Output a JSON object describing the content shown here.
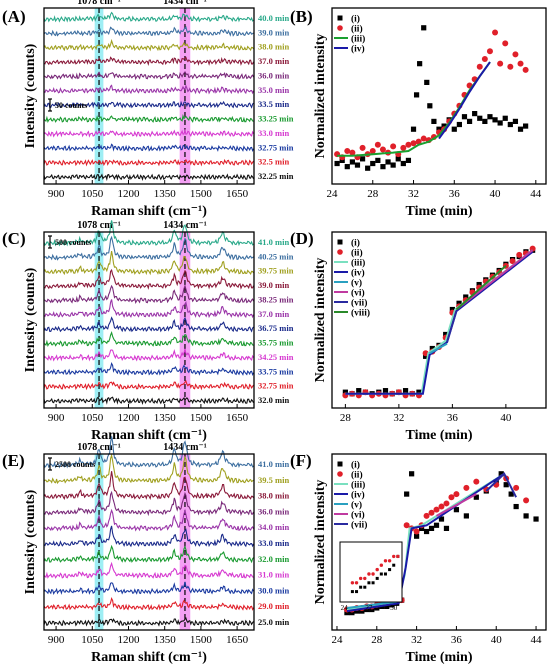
{
  "panels": {
    "A": "(A)",
    "B": "(B)",
    "C": "(C)",
    "D": "(D)",
    "E": "(E)",
    "F": "(F)"
  },
  "chart_data": [
    {
      "id": "A",
      "type": "line",
      "xlabel": "Raman shift (cm⁻¹)",
      "ylabel": "Intensity (counts)",
      "xticks": [
        "900",
        "1050",
        "1200",
        "1350",
        "1500",
        "1650"
      ],
      "xlim": [
        850,
        1720
      ],
      "bands": [
        "1078 cm⁻¹",
        "1434 cm⁻¹"
      ],
      "scalebar": "50 counts",
      "series": [
        {
          "name": "40.0 min",
          "color": "#2aa98a"
        },
        {
          "name": "39.0 min",
          "color": "#3d6fa0"
        },
        {
          "name": "38.0 min",
          "color": "#a0a020"
        },
        {
          "name": "37.0 min",
          "color": "#8a1a3a"
        },
        {
          "name": "36.0 min",
          "color": "#7a2a7a"
        },
        {
          "name": "35.0 min",
          "color": "#9a35a8"
        },
        {
          "name": "33.5 min",
          "color": "#1a2a8a"
        },
        {
          "name": "33.25 min",
          "color": "#1a9a30"
        },
        {
          "name": "33.0 min",
          "color": "#d63ad0"
        },
        {
          "name": "32.75 min",
          "color": "#1a3aa0"
        },
        {
          "name": "32.5 min",
          "color": "#e0202a"
        },
        {
          "name": "32.25 min",
          "color": "#111111"
        }
      ]
    },
    {
      "id": "B",
      "type": "scatter",
      "xlabel": "Time (min)",
      "ylabel": "Normalized intensity",
      "xticks": [
        "24",
        "28",
        "32",
        "36",
        "40",
        "44"
      ],
      "xlim": [
        24,
        45
      ],
      "legend": [
        "(i)",
        "(ii)",
        "(iii)",
        "(iv)"
      ],
      "series": [
        {
          "name": "(i)",
          "color": "#000000",
          "x": [
            24.5,
            25,
            25.5,
            26,
            26.5,
            27,
            27.5,
            28,
            28.5,
            29,
            29.5,
            30,
            30.5,
            31,
            31.5,
            32,
            32.3,
            32.6,
            33,
            33.3,
            33.6,
            34,
            34.5,
            35,
            35.5,
            36,
            36.5,
            37,
            37.5,
            38,
            38.5,
            39,
            39.5,
            40,
            40.5,
            41,
            41.5,
            42,
            42.5,
            43
          ],
          "y": [
            0.08,
            0.1,
            0.06,
            0.09,
            0.07,
            0.11,
            0.05,
            0.08,
            0.1,
            0.06,
            0.09,
            0.07,
            0.11,
            0.08,
            0.1,
            0.3,
            0.52,
            0.72,
            0.95,
            0.6,
            0.45,
            0.35,
            0.3,
            0.32,
            0.36,
            0.3,
            0.33,
            0.38,
            0.35,
            0.4,
            0.37,
            0.35,
            0.38,
            0.36,
            0.34,
            0.37,
            0.33,
            0.35,
            0.3,
            0.32
          ]
        },
        {
          "name": "(ii)",
          "color": "#e0202a",
          "x": [
            24.5,
            25,
            25.5,
            26,
            26.5,
            27,
            27.5,
            28,
            28.5,
            29,
            29.5,
            30,
            30.5,
            31,
            31.5,
            32,
            32.5,
            33,
            33.5,
            34,
            34.5,
            35,
            35.5,
            36,
            36.5,
            37,
            37.5,
            38,
            38.5,
            39,
            39.5,
            40,
            40.5,
            41,
            41.5,
            42,
            42.5,
            43
          ],
          "y": [
            0.14,
            0.12,
            0.16,
            0.15,
            0.12,
            0.18,
            0.14,
            0.16,
            0.2,
            0.17,
            0.15,
            0.19,
            0.14,
            0.18,
            0.2,
            0.21,
            0.22,
            0.24,
            0.23,
            0.25,
            0.28,
            0.3,
            0.35,
            0.4,
            0.45,
            0.52,
            0.58,
            0.62,
            0.7,
            0.75,
            0.8,
            0.92,
            0.72,
            0.85,
            0.7,
            0.78,
            0.72,
            0.68
          ]
        },
        {
          "name": "(iii)",
          "color": "#1aa030",
          "x": [
            24.5,
            26,
            28,
            30,
            31.5,
            32.5,
            33.5,
            34.5,
            35.5,
            36.5,
            37.5,
            38.5,
            39.5
          ],
          "y": [
            0.13,
            0.13,
            0.14,
            0.15,
            0.16,
            0.2,
            0.22,
            0.26,
            0.34,
            0.44,
            0.55,
            0.64,
            0.73
          ]
        },
        {
          "name": "(iv)",
          "color": "#1a1aa8",
          "x": [
            34.5,
            35.5,
            36.5,
            37.5,
            38.5,
            39.5
          ],
          "y": [
            0.24,
            0.33,
            0.43,
            0.54,
            0.64,
            0.73
          ]
        }
      ]
    },
    {
      "id": "C",
      "type": "line",
      "xlabel": "Raman shift (cm⁻¹)",
      "ylabel": "Intensity (counts)",
      "xticks": [
        "900",
        "1050",
        "1200",
        "1350",
        "1500",
        "1650"
      ],
      "xlim": [
        850,
        1720
      ],
      "bands": [
        "1078 cm⁻¹",
        "1434 cm⁻¹"
      ],
      "scalebar": "500 counts",
      "series": [
        {
          "name": "41.0 min",
          "color": "#2aa98a"
        },
        {
          "name": "40.25 min",
          "color": "#3d6fa0"
        },
        {
          "name": "39.75 min",
          "color": "#a0a020"
        },
        {
          "name": "39.0 min",
          "color": "#8a1a3a"
        },
        {
          "name": "38.25 min",
          "color": "#7a2a7a"
        },
        {
          "name": "37.0 min",
          "color": "#9a35a8"
        },
        {
          "name": "36.75 min",
          "color": "#1a2a8a"
        },
        {
          "name": "35.75 min",
          "color": "#1a9a30"
        },
        {
          "name": "34.25 min",
          "color": "#d63ad0"
        },
        {
          "name": "33.75 min",
          "color": "#1a3aa0"
        },
        {
          "name": "32.75 min",
          "color": "#e0202a"
        },
        {
          "name": "32.0 min",
          "color": "#111111"
        }
      ]
    },
    {
      "id": "D",
      "type": "scatter",
      "xlabel": "Time (min)",
      "ylabel": "Normalized intensity",
      "xticks": [
        "28",
        "32",
        "36",
        "40"
      ],
      "xlim": [
        27,
        43
      ],
      "legend": [
        "(i)",
        "(ii)",
        "(iii)",
        "(iv)",
        "(v)",
        "(vi)",
        "(vii)",
        "(viii)"
      ],
      "series": [
        {
          "name": "(i)",
          "color": "#000000",
          "x": [
            28,
            28.5,
            29,
            29.5,
            30,
            30.5,
            31,
            31.5,
            32,
            32.5,
            33,
            33.5,
            34,
            34.5,
            35,
            35.5,
            36,
            36.5,
            37,
            37.5,
            38,
            38.5,
            39,
            39.5,
            40,
            40.5,
            41,
            41.5,
            42
          ],
          "y": [
            0.05,
            0.04,
            0.06,
            0.05,
            0.04,
            0.05,
            0.06,
            0.04,
            0.05,
            0.06,
            0.04,
            0.05,
            0.28,
            0.33,
            0.35,
            0.42,
            0.58,
            0.62,
            0.66,
            0.7,
            0.74,
            0.77,
            0.8,
            0.83,
            0.87,
            0.9,
            0.92,
            0.95,
            0.96
          ]
        },
        {
          "name": "(ii)",
          "color": "#e0202a",
          "x": [
            28,
            28.5,
            29,
            29.5,
            30,
            30.5,
            31,
            31.5,
            32,
            32.5,
            33,
            33.5,
            34,
            34.5,
            35,
            35.5,
            36,
            36.5,
            37,
            37.5,
            38,
            38.5,
            39,
            39.5,
            40,
            40.5,
            41,
            41.5,
            42
          ],
          "y": [
            0.03,
            0.04,
            0.03,
            0.05,
            0.03,
            0.04,
            0.03,
            0.04,
            0.05,
            0.03,
            0.04,
            0.03,
            0.3,
            0.31,
            0.34,
            0.4,
            0.56,
            0.6,
            0.64,
            0.69,
            0.72,
            0.76,
            0.79,
            0.82,
            0.86,
            0.89,
            0.93,
            0.94,
            0.97
          ]
        },
        {
          "name": "(iii)",
          "color": "#7ae0c0",
          "x": [
            28,
            33.7,
            34.2,
            35.5,
            36.2,
            42
          ],
          "y": [
            0.04,
            0.04,
            0.3,
            0.38,
            0.58,
            0.96
          ]
        },
        {
          "name": "(iv)",
          "color": "#1a1aa8",
          "x": [
            28,
            33.8,
            34.3,
            35.6,
            36.3,
            42
          ],
          "y": [
            0.04,
            0.04,
            0.29,
            0.37,
            0.57,
            0.95
          ]
        },
        {
          "name": "(v)",
          "color": "#2aa0c0",
          "x": [
            34.3,
            35.6
          ],
          "y": [
            0.3,
            0.36
          ]
        },
        {
          "name": "(vi)",
          "color": "#c03aa0",
          "x": [
            36.3,
            42
          ],
          "y": [
            0.58,
            0.96
          ]
        },
        {
          "name": "(vii)",
          "color": "#2a2aa0",
          "x": [
            35.6,
            36.3
          ],
          "y": [
            0.37,
            0.57
          ]
        },
        {
          "name": "(viii)",
          "color": "#2a8a2a",
          "x": [
            36.3,
            40
          ],
          "y": [
            0.58,
            0.86
          ]
        }
      ]
    },
    {
      "id": "E",
      "type": "line",
      "xlabel": "Raman shift (cm⁻¹)",
      "ylabel": "Intensity (counts)",
      "xticks": [
        "900",
        "1050",
        "1200",
        "1350",
        "1500",
        "1650"
      ],
      "xlim": [
        850,
        1720
      ],
      "bands": [
        "1078 cm⁻¹",
        "1434 cm⁻¹"
      ],
      "scalebar": "2500 counts",
      "series": [
        {
          "name": "41.0 min",
          "color": "#3d6fa0"
        },
        {
          "name": "39.5 min",
          "color": "#a0a020"
        },
        {
          "name": "38.0 min",
          "color": "#8a1a3a"
        },
        {
          "name": "36.0 min",
          "color": "#7a2a7a"
        },
        {
          "name": "34.0 min",
          "color": "#9a35a8"
        },
        {
          "name": "33.0 min",
          "color": "#1a2a8a"
        },
        {
          "name": "32.0 min",
          "color": "#1a9a30"
        },
        {
          "name": "31.0 min",
          "color": "#d63ad0"
        },
        {
          "name": "30.0 min",
          "color": "#1a3aa0"
        },
        {
          "name": "29.0 min",
          "color": "#e0202a"
        },
        {
          "name": "25.0 min",
          "color": "#111111"
        }
      ]
    },
    {
      "id": "F",
      "type": "scatter",
      "xlabel": "Time (min)",
      "ylabel": "Normalized intensity",
      "xticks": [
        "24",
        "28",
        "32",
        "36",
        "40",
        "44"
      ],
      "xlim": [
        23.5,
        45
      ],
      "legend": [
        "(i)",
        "(ii)",
        "(iii)",
        "(iv)",
        "(v)",
        "(vi)",
        "(vii)"
      ],
      "inset_xticks": [
        "24",
        "27",
        "30"
      ],
      "series": [
        {
          "name": "(i)",
          "color": "#000000",
          "x": [
            25,
            25.5,
            26,
            26.5,
            27,
            27.5,
            28,
            28.5,
            29,
            29.5,
            30,
            30.5,
            31,
            31.5,
            32,
            32.5,
            33,
            33.5,
            34,
            34.5,
            35,
            36,
            37,
            38,
            39,
            40,
            40.5,
            41,
            41.5,
            42,
            43,
            44
          ],
          "y": [
            0.06,
            0.06,
            0.07,
            0.07,
            0.08,
            0.08,
            0.09,
            0.1,
            0.1,
            0.11,
            0.12,
            0.14,
            0.82,
            0.95,
            0.55,
            0.6,
            0.58,
            0.6,
            0.62,
            0.66,
            0.6,
            0.72,
            0.68,
            0.8,
            0.84,
            0.9,
            0.95,
            0.88,
            0.82,
            0.74,
            0.68,
            0.66
          ]
        },
        {
          "name": "(ii)",
          "color": "#e0202a",
          "x": [
            25,
            25.5,
            26,
            26.5,
            27,
            27.5,
            28,
            28.5,
            29,
            29.5,
            30,
            30.5,
            31,
            31.5,
            32,
            32.5,
            33,
            33.5,
            34,
            34.5,
            35,
            35.5,
            36,
            37,
            38,
            39,
            40,
            41,
            42,
            43
          ],
          "y": [
            0.08,
            0.08,
            0.09,
            0.09,
            0.1,
            0.1,
            0.11,
            0.12,
            0.13,
            0.13,
            0.14,
            0.14,
            0.62,
            0.6,
            0.58,
            0.62,
            0.68,
            0.7,
            0.72,
            0.74,
            0.76,
            0.8,
            0.82,
            0.86,
            0.9,
            0.85,
            0.88,
            0.92,
            0.86,
            0.78
          ]
        },
        {
          "name": "(iii)",
          "color": "#7ae0c0",
          "x": [
            25,
            30,
            30.8,
            31.3,
            32.5,
            40.8
          ],
          "y": [
            0.08,
            0.13,
            0.3,
            0.6,
            0.62,
            0.95
          ]
        },
        {
          "name": "(iv)",
          "color": "#1a1aa8",
          "x": [
            25,
            30.2,
            30.9,
            31.5,
            33,
            40.8
          ],
          "y": [
            0.07,
            0.12,
            0.35,
            0.6,
            0.62,
            0.95
          ]
        },
        {
          "name": "(v)",
          "color": "#2aa0c0",
          "x": [
            25,
            30
          ],
          "y": [
            0.09,
            0.13
          ]
        },
        {
          "name": "(vi)",
          "color": "#c03aa0",
          "x": [
            34,
            38
          ],
          "y": [
            0.68,
            0.82
          ]
        },
        {
          "name": "(vii)",
          "color": "#2a2aa0",
          "x": [
            39,
            40.8,
            42
          ],
          "y": [
            0.84,
            0.95,
            0.8
          ]
        }
      ]
    }
  ]
}
